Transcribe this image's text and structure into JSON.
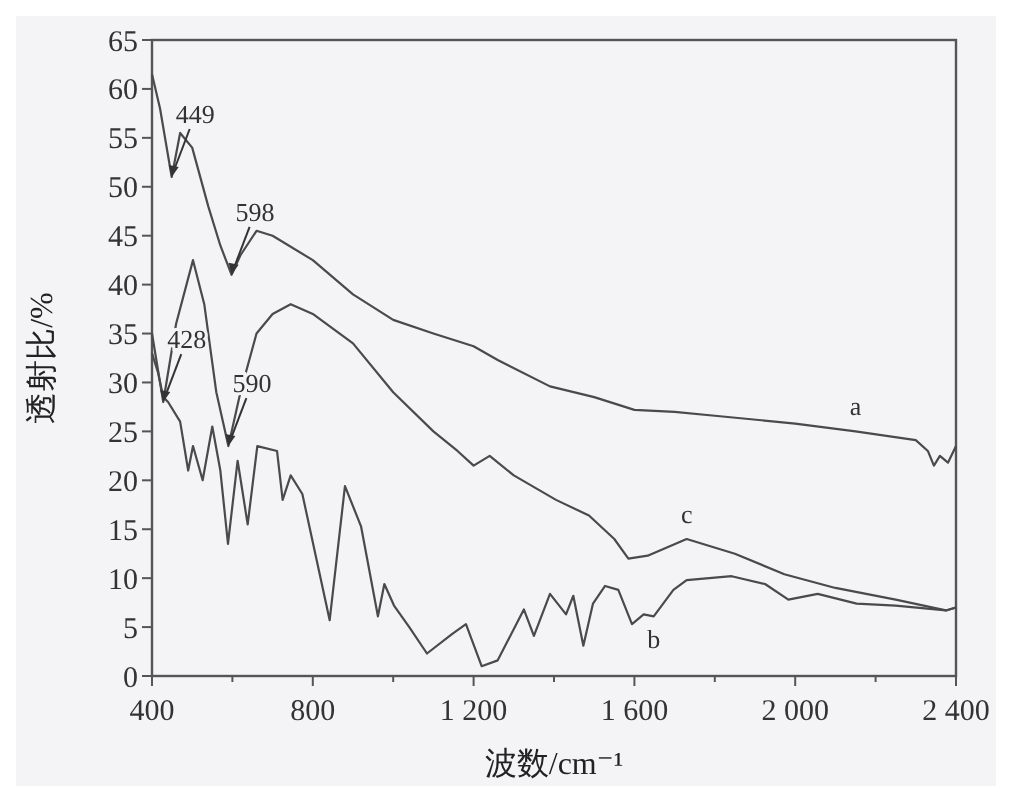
{
  "chart_data": {
    "type": "line",
    "xlabel": "波数/cm⁻¹",
    "ylabel": "透射比/%",
    "xlim": [
      400,
      2400
    ],
    "ylim": [
      0,
      65
    ],
    "xticks": [
      400,
      {
        "value": 600,
        "label": null
      },
      800,
      {
        "value": 1000,
        "label": null
      },
      {
        "value": 1200,
        "label": "1 200"
      },
      {
        "value": 1400,
        "label": null
      },
      {
        "value": 1600,
        "label": "1 600"
      },
      {
        "value": 1800,
        "label": null
      },
      {
        "value": 2000,
        "label": "2 000"
      },
      {
        "value": 2200,
        "label": null
      },
      {
        "value": 2400,
        "label": "2 400"
      }
    ],
    "yticks": [
      0,
      5,
      10,
      15,
      20,
      25,
      30,
      35,
      40,
      45,
      50,
      55,
      60,
      65
    ],
    "marker": "none",
    "line_style": "solid",
    "series": [
      {
        "name": "a",
        "color": "#4a4a4a",
        "x": [
          400,
          420,
          449,
          470,
          500,
          540,
          570,
          598,
          620,
          660,
          700,
          800,
          900,
          1000,
          1100,
          1200,
          1260,
          1390,
          1500,
          1600,
          1700,
          1800,
          2000,
          2150,
          2300,
          2330,
          2345,
          2360,
          2380,
          2400
        ],
        "values": [
          61.5,
          58,
          51,
          55.5,
          54,
          48,
          44,
          41,
          43,
          45.5,
          45,
          42.5,
          39,
          36.4,
          35,
          33.7,
          32.3,
          29.6,
          28.5,
          27.2,
          27,
          26.6,
          25.8,
          25,
          24.1,
          23,
          21.5,
          22.5,
          21.8,
          23.5
        ]
      },
      {
        "name": "b",
        "color": "#4a4a4a",
        "x": [
          400,
          415,
          428,
          440,
          470,
          490,
          502,
          526,
          550,
          570,
          589,
          613,
          638,
          662,
          711,
          725,
          745,
          774,
          842,
          880,
          920,
          962,
          978,
          1002,
          1040,
          1084,
          1147,
          1181,
          1220,
          1260,
          1325,
          1350,
          1390,
          1430,
          1448,
          1473,
          1497,
          1527,
          1560,
          1594,
          1623,
          1648,
          1697,
          1730,
          1842,
          1925,
          1983,
          2056,
          2153,
          2250,
          2375,
          2400
        ],
        "values": [
          33,
          31,
          28.5,
          28,
          26,
          21,
          23.5,
          20,
          25.5,
          21,
          13.5,
          22,
          15.5,
          23.5,
          23,
          18,
          20.5,
          18.6,
          5.7,
          19.4,
          15.3,
          6.1,
          9.4,
          7.2,
          5,
          2.3,
          4.3,
          5.3,
          1,
          1.6,
          6.8,
          4.1,
          8.4,
          6.3,
          8.2,
          3.1,
          7.4,
          9.2,
          8.8,
          5.3,
          6.3,
          6.1,
          8.8,
          9.8,
          10.2,
          9.4,
          7.8,
          8.4,
          7.4,
          7.2,
          6.7,
          7
        ]
      },
      {
        "name": "c",
        "color": "#4a4a4a",
        "x": [
          400,
          428,
          460,
          502,
          530,
          560,
          590,
          620,
          660,
          700,
          745,
          800,
          900,
          1000,
          1100,
          1160,
          1200,
          1240,
          1300,
          1405,
          1487,
          1550,
          1585,
          1633,
          1730,
          1850,
          1973,
          2100,
          2250,
          2375,
          2400
        ],
        "values": [
          35,
          28,
          36,
          42.5,
          38,
          29,
          23.5,
          29,
          35,
          37,
          38,
          37,
          34,
          29,
          25,
          23,
          21.5,
          22.5,
          20.5,
          18,
          16.4,
          14,
          12,
          12.3,
          14,
          12.5,
          10.4,
          9,
          7.8,
          6.7,
          7
        ]
      }
    ],
    "annotations": [
      {
        "text": "449",
        "x": 449,
        "y": 51
      },
      {
        "text": "598",
        "x": 598,
        "y": 41
      },
      {
        "text": "428",
        "x": 428,
        "y": 28
      },
      {
        "text": "590",
        "x": 590,
        "y": 23.5
      }
    ]
  }
}
